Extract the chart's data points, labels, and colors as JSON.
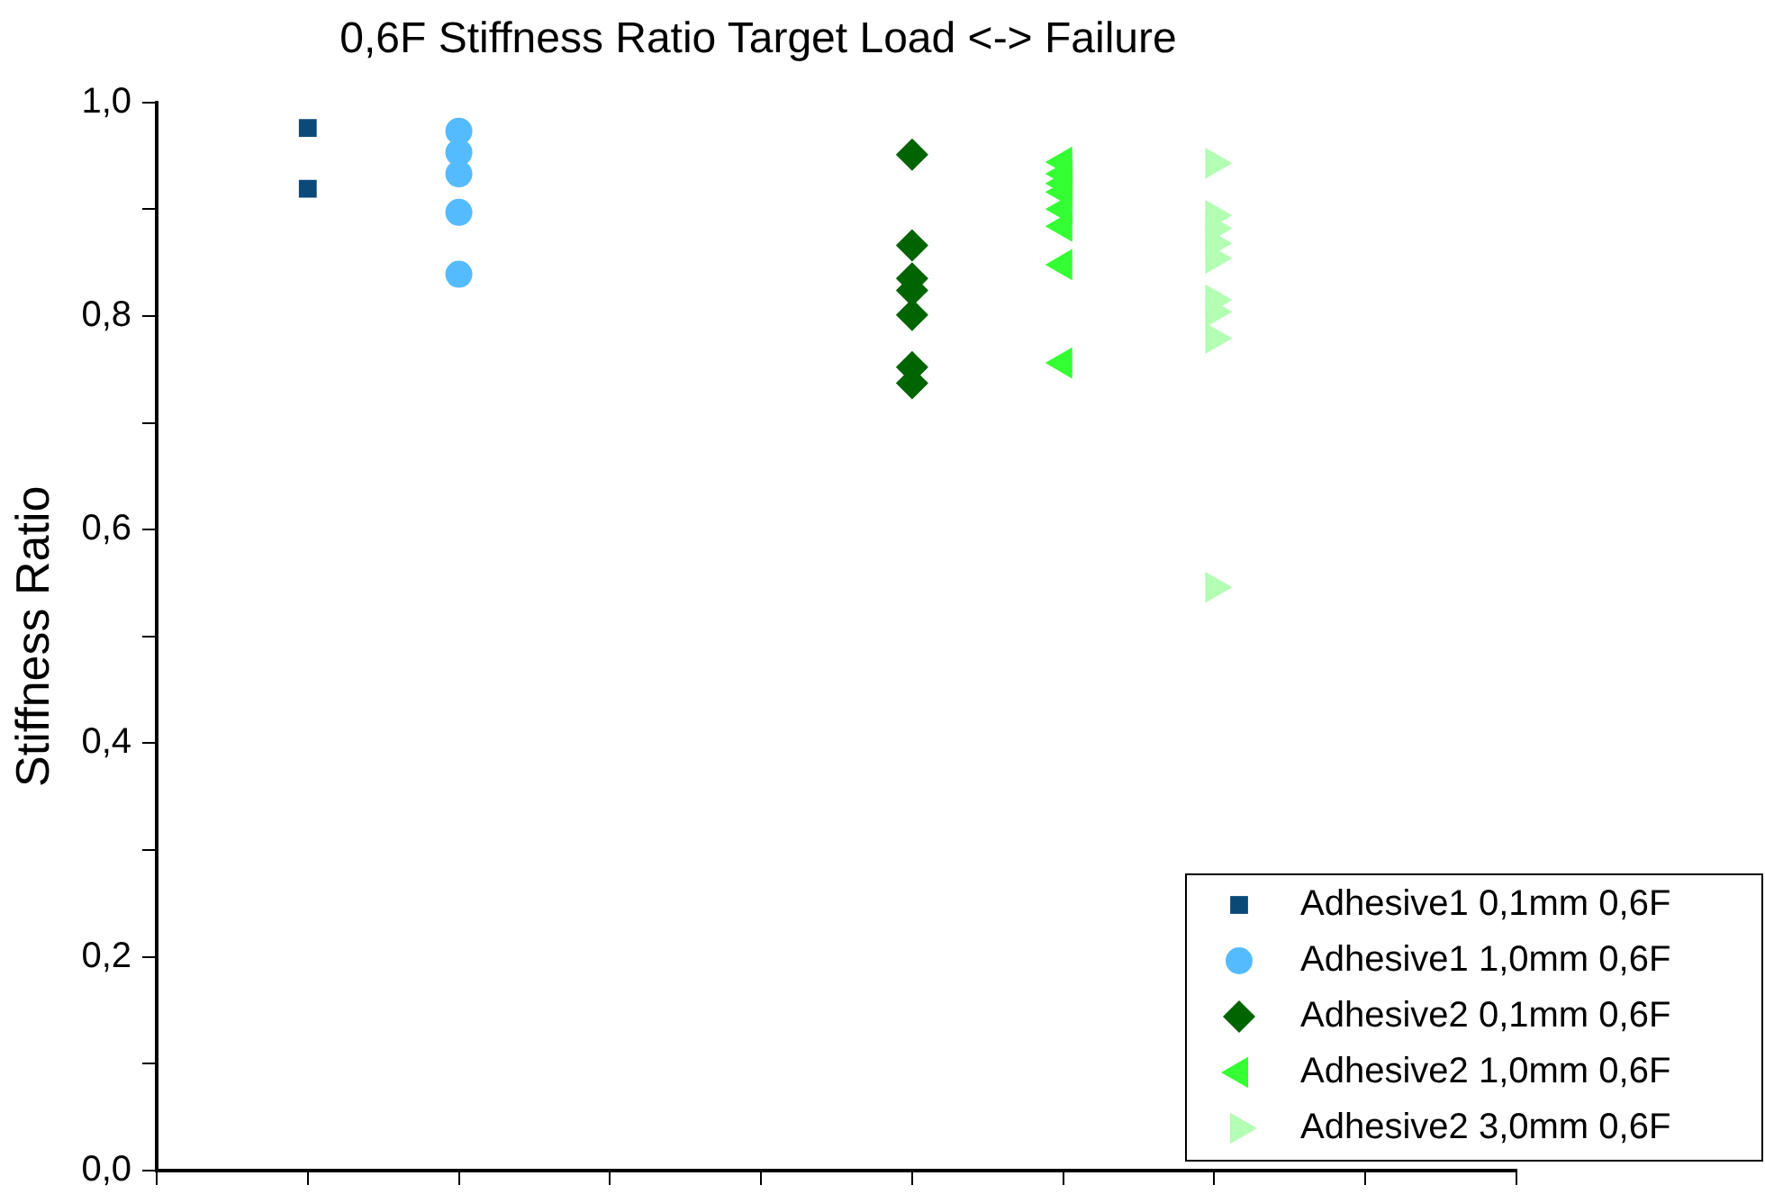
{
  "chart_data": {
    "type": "scatter",
    "title": "0,6F Stiffness Ratio Target Load <-> Failure",
    "ylabel": "Stiffness Ratio",
    "categories": [
      null,
      null,
      null,
      null,
      null,
      null,
      null,
      null,
      null,
      null
    ],
    "ylim": [
      0,
      1
    ],
    "yticks": [
      {
        "value": 0,
        "label": "0,0"
      },
      {
        "value": 0.1,
        "label": null
      },
      {
        "value": 0.2,
        "label": "0,2"
      },
      {
        "value": 0.3,
        "label": null
      },
      {
        "value": 0.4,
        "label": "0,4"
      },
      {
        "value": 0.5,
        "label": null
      },
      {
        "value": 0.6,
        "label": "0,6"
      },
      {
        "value": 0.7,
        "label": null
      },
      {
        "value": 0.8,
        "label": "0,8"
      },
      {
        "value": 0.9,
        "label": null
      },
      {
        "value": 1,
        "label": "1,0"
      }
    ],
    "tick_labels": "y",
    "grid": false,
    "legend": "bottom right",
    "series": [
      {
        "name": "Adhesive1 0,1mm 0,6F",
        "color": "#0b4a78",
        "marker": "square",
        "values": [
          null,
          0.976,
          null,
          null,
          null,
          null,
          null,
          null,
          null,
          null
        ]
      },
      {
        "color": "#0b4a78",
        "marker": "square",
        "values": [
          null,
          0.919,
          null,
          null,
          null,
          null,
          null,
          null,
          null,
          null
        ]
      },
      {
        "name": "Adhesive1 1,0mm 0,6F",
        "color": "#55bbff",
        "marker": "circle",
        "values": [
          null,
          null,
          0.973,
          null,
          null,
          null,
          null,
          null,
          null,
          null
        ]
      },
      {
        "color": "#55bbff",
        "marker": "circle",
        "values": [
          null,
          null,
          0.953,
          null,
          null,
          null,
          null,
          null,
          null,
          null
        ]
      },
      {
        "color": "#55bbff",
        "marker": "circle",
        "values": [
          null,
          null,
          0.933,
          null,
          null,
          null,
          null,
          null,
          null,
          null
        ]
      },
      {
        "color": "#55bbff",
        "marker": "circle",
        "values": [
          null,
          null,
          0.897,
          null,
          null,
          null,
          null,
          null,
          null,
          null
        ]
      },
      {
        "color": "#55bbff",
        "marker": "circle",
        "values": [
          null,
          null,
          0.839,
          null,
          null,
          null,
          null,
          null,
          null,
          null
        ]
      },
      {
        "name": "Adhesive2 0,1mm 0,6F",
        "color": "#006400",
        "marker": "diamond",
        "values": [
          null,
          null,
          null,
          null,
          null,
          0.951,
          null,
          null,
          null,
          null
        ]
      },
      {
        "color": "#006400",
        "marker": "diamond",
        "values": [
          null,
          null,
          null,
          null,
          null,
          0.866,
          null,
          null,
          null,
          null
        ]
      },
      {
        "color": "#006400",
        "marker": "diamond",
        "values": [
          null,
          null,
          null,
          null,
          null,
          0.835,
          null,
          null,
          null,
          null
        ]
      },
      {
        "color": "#006400",
        "marker": "diamond",
        "values": [
          null,
          null,
          null,
          null,
          null,
          0.824,
          null,
          null,
          null,
          null
        ]
      },
      {
        "color": "#006400",
        "marker": "diamond",
        "values": [
          null,
          null,
          null,
          null,
          null,
          0.801,
          null,
          null,
          null,
          null
        ]
      },
      {
        "color": "#006400",
        "marker": "diamond",
        "values": [
          null,
          null,
          null,
          null,
          null,
          0.752,
          null,
          null,
          null,
          null
        ]
      },
      {
        "color": "#006400",
        "marker": "diamond",
        "values": [
          null,
          null,
          null,
          null,
          null,
          0.737,
          null,
          null,
          null,
          null
        ]
      },
      {
        "name": "Adhesive2 1,0mm 0,6F",
        "color": "#33ff33",
        "marker": "triangle-left",
        "values": [
          null,
          null,
          null,
          null,
          null,
          null,
          0.944,
          null,
          null,
          null
        ]
      },
      {
        "color": "#33ff33",
        "marker": "triangle-left",
        "values": [
          null,
          null,
          null,
          null,
          null,
          null,
          0.933,
          null,
          null,
          null
        ]
      },
      {
        "color": "#33ff33",
        "marker": "triangle-left",
        "values": [
          null,
          null,
          null,
          null,
          null,
          null,
          0.924,
          null,
          null,
          null
        ]
      },
      {
        "color": "#33ff33",
        "marker": "triangle-left",
        "values": [
          null,
          null,
          null,
          null,
          null,
          null,
          0.916,
          null,
          null,
          null
        ]
      },
      {
        "color": "#33ff33",
        "marker": "triangle-left",
        "values": [
          null,
          null,
          null,
          null,
          null,
          null,
          0.9,
          null,
          null,
          null
        ]
      },
      {
        "color": "#33ff33",
        "marker": "triangle-left",
        "values": [
          null,
          null,
          null,
          null,
          null,
          null,
          0.884,
          null,
          null,
          null
        ]
      },
      {
        "color": "#33ff33",
        "marker": "triangle-left",
        "values": [
          null,
          null,
          null,
          null,
          null,
          null,
          0.848,
          null,
          null,
          null
        ]
      },
      {
        "color": "#33ff33",
        "marker": "triangle-left",
        "values": [
          null,
          null,
          null,
          null,
          null,
          null,
          0.756,
          null,
          null,
          null
        ]
      },
      {
        "name": "Adhesive2 3,0mm 0,6F",
        "color": "#b3ffb3",
        "marker": "triangle-right",
        "values": [
          null,
          null,
          null,
          null,
          null,
          null,
          null,
          0.943,
          null,
          null
        ]
      },
      {
        "color": "#b3ffb3",
        "marker": "triangle-right",
        "values": [
          null,
          null,
          null,
          null,
          null,
          null,
          null,
          0.894,
          null,
          null
        ]
      },
      {
        "color": "#b3ffb3",
        "marker": "triangle-right",
        "values": [
          null,
          null,
          null,
          null,
          null,
          null,
          null,
          0.882,
          null,
          null
        ]
      },
      {
        "color": "#b3ffb3",
        "marker": "triangle-right",
        "values": [
          null,
          null,
          null,
          null,
          null,
          null,
          null,
          0.868,
          null,
          null
        ]
      },
      {
        "color": "#b3ffb3",
        "marker": "triangle-right",
        "values": [
          null,
          null,
          null,
          null,
          null,
          null,
          null,
          0.854,
          null,
          null
        ]
      },
      {
        "color": "#b3ffb3",
        "marker": "triangle-right",
        "values": [
          null,
          null,
          null,
          null,
          null,
          null,
          null,
          0.815,
          null,
          null
        ]
      },
      {
        "color": "#b3ffb3",
        "marker": "triangle-right",
        "values": [
          null,
          null,
          null,
          null,
          null,
          null,
          null,
          0.804,
          null,
          null
        ]
      },
      {
        "color": "#b3ffb3",
        "marker": "triangle-right",
        "values": [
          null,
          null,
          null,
          null,
          null,
          null,
          null,
          0.779,
          null,
          null
        ]
      },
      {
        "color": "#b3ffb3",
        "marker": "triangle-right",
        "values": [
          null,
          null,
          null,
          null,
          null,
          null,
          null,
          0.546,
          null,
          null
        ]
      }
    ]
  }
}
